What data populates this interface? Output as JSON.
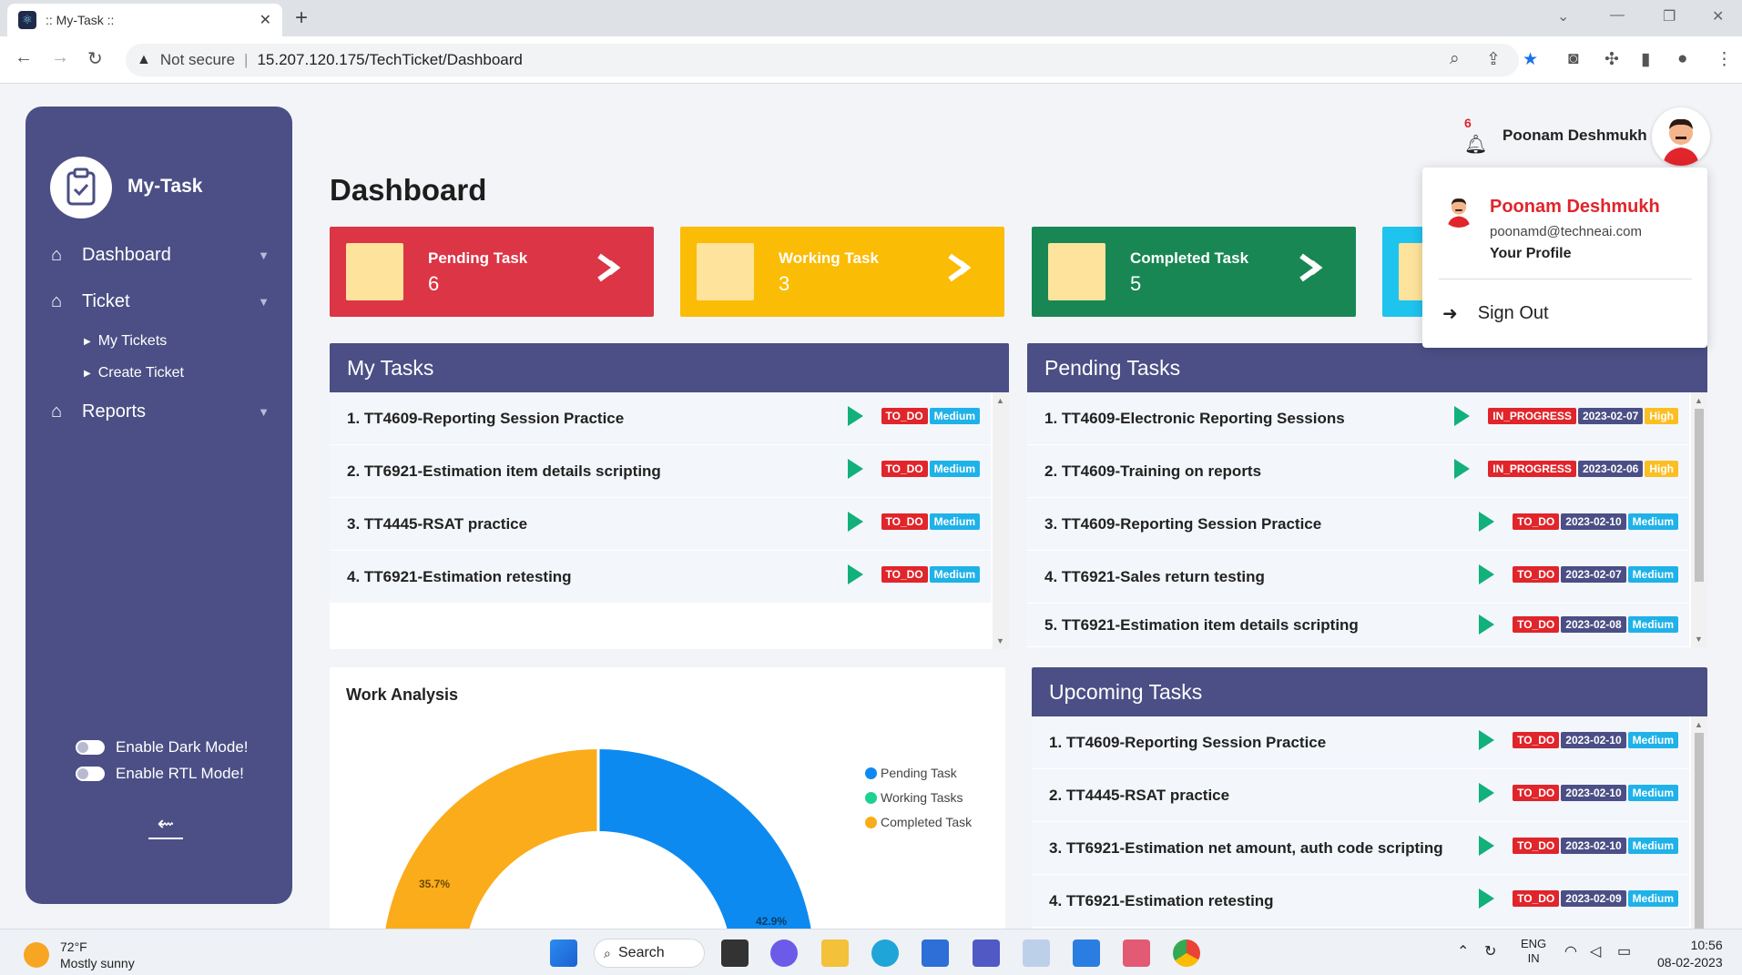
{
  "browser": {
    "tab_title": ":: My-Task ::",
    "not_secure": "Not secure",
    "url": "15.207.120.175/TechTicket/Dashboard"
  },
  "sidebar": {
    "logo_text": "My-Task",
    "menu": [
      {
        "label": "Dashboard"
      },
      {
        "label": "Ticket"
      },
      {
        "label": "Reports"
      }
    ],
    "ticket_submenu": [
      {
        "label": "My Tickets"
      },
      {
        "label": "Create Ticket"
      }
    ],
    "dark_mode_label": "Enable Dark Mode!",
    "rtl_mode_label": "Enable RTL Mode!"
  },
  "header": {
    "notification_count": "6",
    "user_name": "Poonam Deshmukh"
  },
  "page_title": "Dashboard",
  "stats": [
    {
      "label": "Pending Task",
      "value": "6",
      "color": "#dc3545"
    },
    {
      "label": "Working Task",
      "value": "3",
      "color": "#fbbc05"
    },
    {
      "label": "Completed Task",
      "value": "5",
      "color": "#198754"
    }
  ],
  "my_tasks": {
    "title": "My Tasks",
    "rows": [
      {
        "text": "1. TT4609-Reporting Session Practice",
        "status": "TO_DO",
        "priority": "Medium"
      },
      {
        "text": "2. TT6921-Estimation item details scripting",
        "status": "TO_DO",
        "priority": "Medium"
      },
      {
        "text": "3. TT4445-RSAT practice",
        "status": "TO_DO",
        "priority": "Medium"
      },
      {
        "text": "4. TT6921-Estimation retesting",
        "status": "TO_DO",
        "priority": "Medium"
      }
    ]
  },
  "pending_tasks": {
    "title": "Pending Tasks",
    "rows": [
      {
        "text": "1. TT4609-Electronic Reporting Sessions",
        "status": "IN_PROGRESS",
        "date": "2023-02-07",
        "priority": "High"
      },
      {
        "text": "2. TT4609-Training on reports",
        "status": "IN_PROGRESS",
        "date": "2023-02-06",
        "priority": "High"
      },
      {
        "text": "3. TT4609-Reporting Session Practice",
        "status": "TO_DO",
        "date": "2023-02-10",
        "priority": "Medium"
      },
      {
        "text": "4. TT6921-Sales return testing",
        "status": "TO_DO",
        "date": "2023-02-07",
        "priority": "Medium"
      },
      {
        "text": "5. TT6921-Estimation item details scripting",
        "status": "TO_DO",
        "date": "2023-02-08",
        "priority": "Medium"
      }
    ]
  },
  "upcoming_tasks": {
    "title": "Upcoming Tasks",
    "rows": [
      {
        "text": "1. TT4609-Reporting Session Practice",
        "status": "TO_DO",
        "date": "2023-02-10",
        "priority": "Medium"
      },
      {
        "text": "2. TT4445-RSAT practice",
        "status": "TO_DO",
        "date": "2023-02-10",
        "priority": "Medium"
      },
      {
        "text": "3. TT6921-Estimation net amount, auth code scripting",
        "status": "TO_DO",
        "date": "2023-02-10",
        "priority": "Medium"
      },
      {
        "text": "4. TT6921-Estimation retesting",
        "status": "TO_DO",
        "date": "2023-02-09",
        "priority": "Medium"
      }
    ]
  },
  "work_analysis": {
    "title": "Work Analysis",
    "legend": [
      {
        "label": "Pending Task",
        "color": "#0d8af0"
      },
      {
        "label": "Working Tasks",
        "color": "#1fd18f"
      },
      {
        "label": "Completed Task",
        "color": "#fbac1b"
      }
    ],
    "visible_labels": {
      "completed": "35.7%",
      "pending": "42.9%"
    }
  },
  "profile_dropdown": {
    "name": "Poonam Deshmukh",
    "email": "poonamd@techneai.com",
    "profile_link": "Your Profile",
    "sign_out": "Sign Out"
  },
  "taskbar": {
    "temperature": "72°F",
    "weather": "Mostly sunny",
    "search_label": "Search",
    "lang_top": "ENG",
    "lang_bottom": "IN",
    "time": "10:56",
    "date": "08-02-2023"
  }
}
